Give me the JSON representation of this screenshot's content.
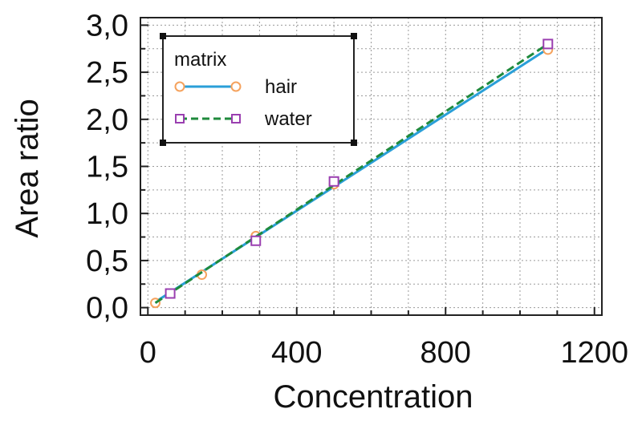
{
  "chart_data": {
    "type": "scatter",
    "title": "",
    "xlabel": "Concentration",
    "ylabel": "Area ratio",
    "xlim": [
      -20,
      1220
    ],
    "ylim": [
      -0.08,
      3.08
    ],
    "x_ticks": [
      0,
      400,
      800,
      1200
    ],
    "x_tick_labels": [
      "0",
      "400",
      "800",
      "1200"
    ],
    "y_ticks": [
      0.0,
      0.5,
      1.0,
      1.5,
      2.0,
      2.5,
      3.0
    ],
    "y_tick_labels": [
      "0,0",
      "0,5",
      "1,0",
      "1,5",
      "2,0",
      "2,5",
      "3,0"
    ],
    "grid": true,
    "legend": {
      "title": "matrix",
      "placement": "top-left",
      "entries": [
        "hair",
        "water"
      ]
    },
    "series": [
      {
        "name": "hair",
        "marker": "circle",
        "line_style": "solid",
        "marker_color": "#f5a25d",
        "line_color": "#2a9fd8",
        "points": [
          {
            "x": 20,
            "y": 0.05
          },
          {
            "x": 145,
            "y": 0.35
          },
          {
            "x": 290,
            "y": 0.76
          },
          {
            "x": 500,
            "y": 1.31
          },
          {
            "x": 1075,
            "y": 2.74
          }
        ],
        "fit": {
          "x": [
            20,
            1075
          ],
          "y": [
            0.06,
            2.75
          ]
        }
      },
      {
        "name": "water",
        "marker": "square",
        "line_style": "dashed",
        "marker_color": "#9a3fb0",
        "line_color": "#1f8a3c",
        "points": [
          {
            "x": 60,
            "y": 0.15
          },
          {
            "x": 290,
            "y": 0.71
          },
          {
            "x": 500,
            "y": 1.34
          },
          {
            "x": 1075,
            "y": 2.8
          }
        ],
        "fit": {
          "x": [
            20,
            1075
          ],
          "y": [
            0.05,
            2.8
          ]
        }
      }
    ]
  }
}
